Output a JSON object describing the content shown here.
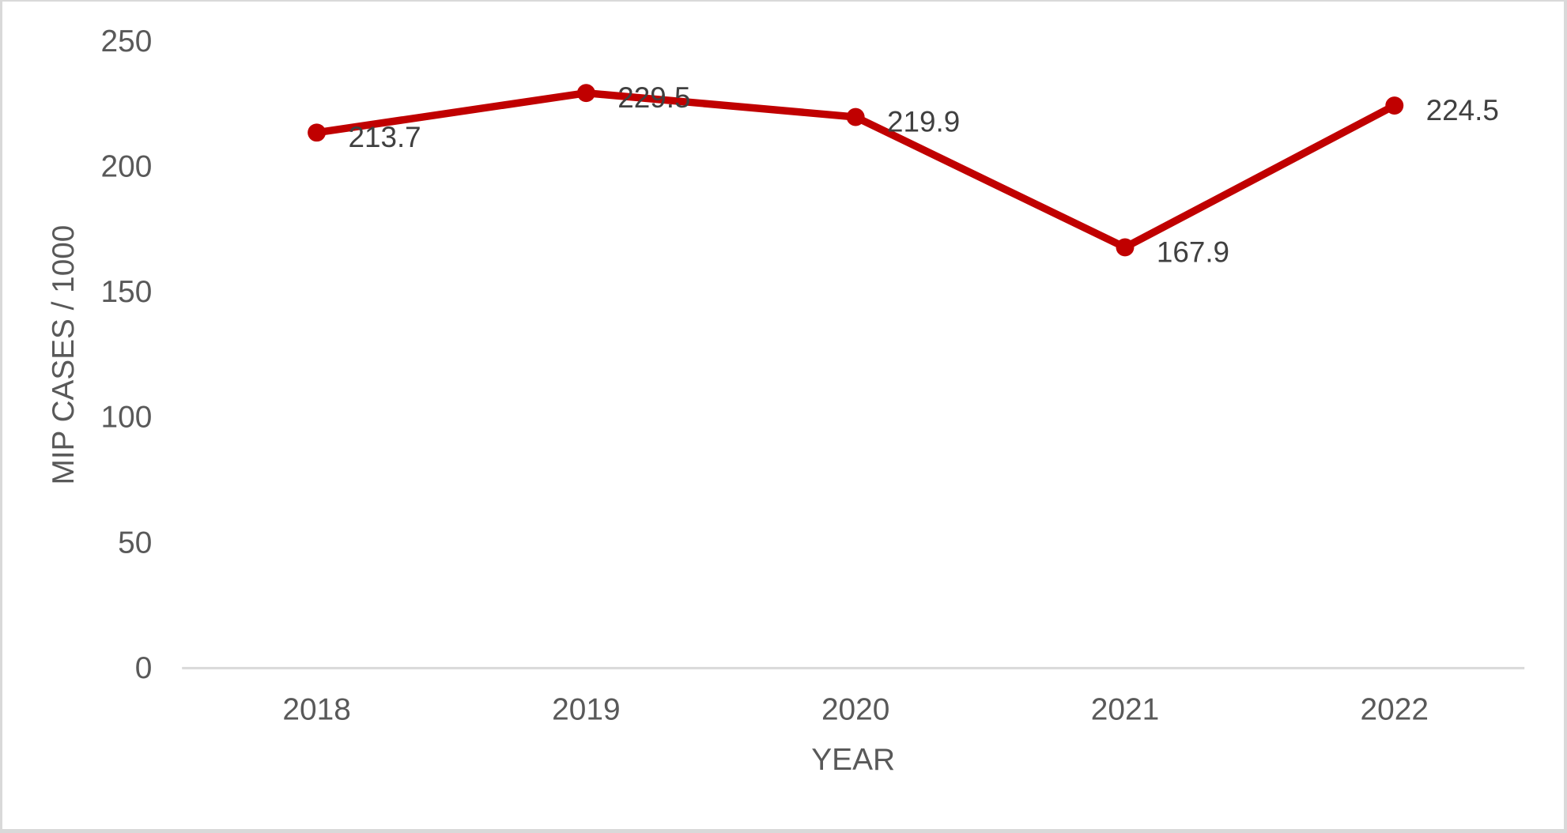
{
  "chart_data": {
    "type": "line",
    "title": "",
    "categories": [
      "2018",
      "2019",
      "2020",
      "2021",
      "2022"
    ],
    "series": [
      {
        "name": "",
        "values": [
          213.7,
          229.5,
          219.9,
          167.9,
          224.5
        ],
        "data_labels": [
          "213.7",
          "229.5",
          "219.9",
          "167.9",
          "224.5"
        ]
      }
    ],
    "xlabel": "YEAR",
    "ylabel": "MIP CASES / 1000",
    "ylim": [
      0,
      250
    ],
    "yticks": [
      0,
      50,
      100,
      150,
      200,
      250
    ],
    "ytick_labels": [
      "0",
      "50",
      "100",
      "150",
      "200",
      "250"
    ],
    "grid": false,
    "legend": "none",
    "colors": {
      "line": "#C00000",
      "marker": "#C00000",
      "data_label_text": "#404040",
      "axis_tick_text": "#595959",
      "axis_title_text": "#595959",
      "axis_line": "#D9D9D9",
      "background": "#FFFFFF",
      "frame_border": "#D9D9D9"
    }
  }
}
